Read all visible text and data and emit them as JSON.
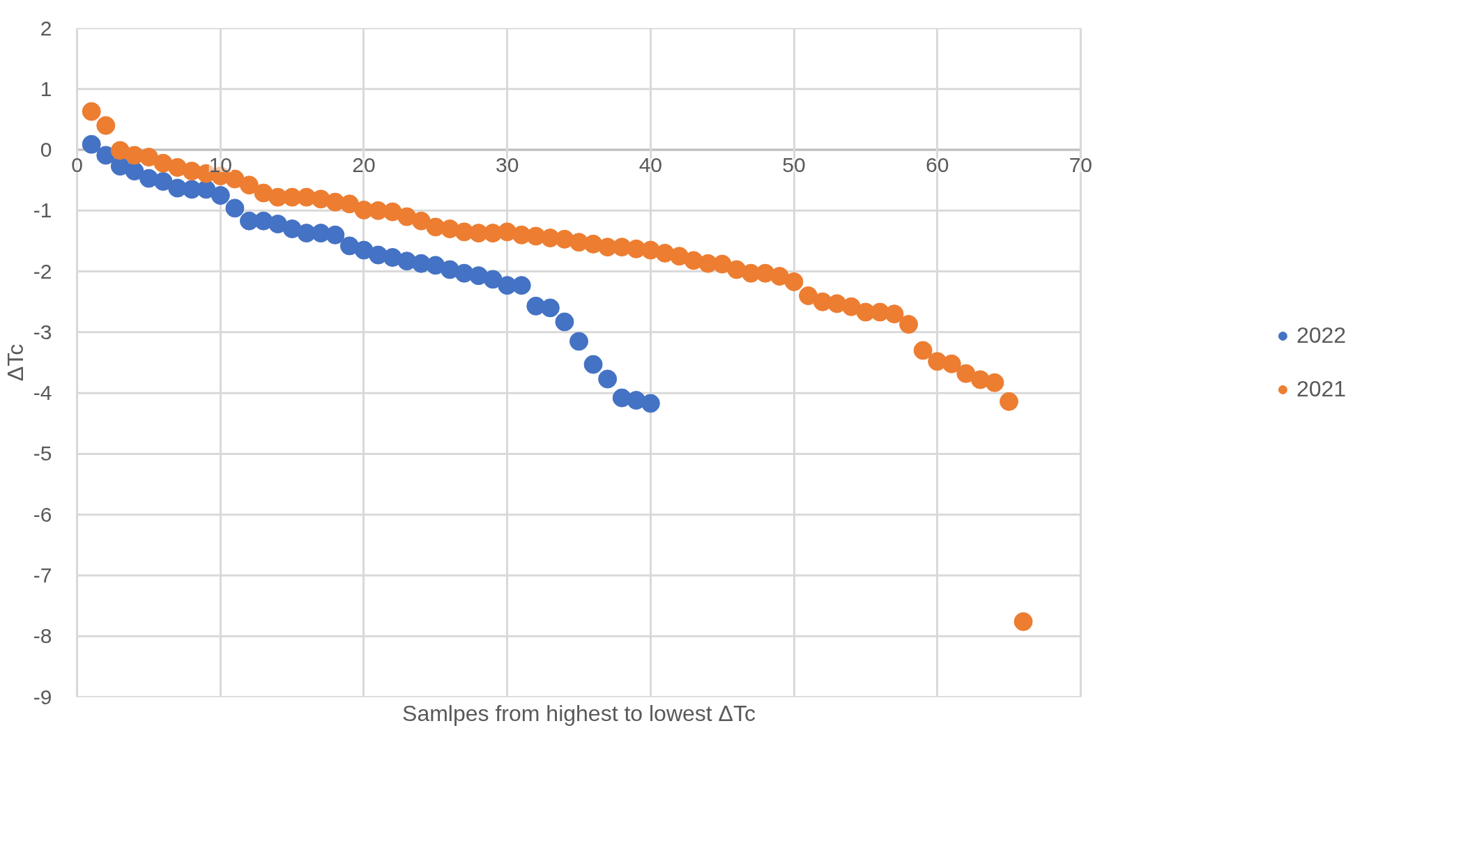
{
  "chart_data": {
    "type": "scatter",
    "xlabel": "Samlpes from highest to lowest ΔTc",
    "ylabel": "ΔTc",
    "xlim": [
      0,
      70
    ],
    "xticks": [
      0,
      10,
      20,
      30,
      40,
      50,
      60,
      70
    ],
    "ylim": [
      -9,
      2
    ],
    "yticks": [
      -9,
      -8,
      -7,
      -6,
      -5,
      -4,
      -3,
      -2,
      -1,
      0,
      1,
      2
    ],
    "grid": true,
    "legend": "right",
    "marker": "circle",
    "series": [
      {
        "name": "2022",
        "color": "#4472c4",
        "x": [
          1,
          2,
          3,
          4,
          5,
          6,
          7,
          8,
          9,
          10,
          11,
          12,
          13,
          14,
          15,
          16,
          17,
          18,
          19,
          20,
          21,
          22,
          23,
          24,
          25,
          26,
          27,
          28,
          29,
          30,
          31,
          32,
          33,
          34,
          35,
          36,
          37,
          38,
          39,
          40
        ],
        "values": [
          0.09,
          -0.09,
          -0.27,
          -0.35,
          -0.47,
          -0.52,
          -0.63,
          -0.65,
          -0.65,
          -0.75,
          -0.96,
          -1.17,
          -1.17,
          -1.22,
          -1.3,
          -1.37,
          -1.37,
          -1.4,
          -1.58,
          -1.65,
          -1.73,
          -1.77,
          -1.83,
          -1.87,
          -1.9,
          -1.97,
          -2.03,
          -2.07,
          -2.13,
          -2.23,
          -2.23,
          -2.57,
          -2.6,
          -2.83,
          -3.15,
          -3.53,
          -3.77,
          -4.08,
          -4.12,
          -4.17
        ]
      },
      {
        "name": "2021",
        "color": "#ed7d31",
        "x": [
          1,
          2,
          3,
          4,
          5,
          6,
          7,
          8,
          9,
          10,
          11,
          12,
          13,
          14,
          15,
          16,
          17,
          18,
          19,
          20,
          21,
          22,
          23,
          24,
          25,
          26,
          27,
          28,
          29,
          30,
          31,
          32,
          33,
          34,
          35,
          36,
          37,
          38,
          39,
          40,
          41,
          42,
          43,
          44,
          45,
          46,
          47,
          48,
          49,
          50,
          51,
          52,
          53,
          54,
          55,
          56,
          57,
          58,
          59,
          60,
          61,
          62,
          63,
          64,
          65,
          66
        ],
        "values": [
          0.63,
          0.4,
          -0.01,
          -0.09,
          -0.12,
          -0.22,
          -0.29,
          -0.35,
          -0.39,
          -0.43,
          -0.48,
          -0.58,
          -0.71,
          -0.78,
          -0.78,
          -0.78,
          -0.81,
          -0.86,
          -0.89,
          -0.99,
          -1.0,
          -1.02,
          -1.1,
          -1.17,
          -1.27,
          -1.3,
          -1.35,
          -1.37,
          -1.37,
          -1.35,
          -1.4,
          -1.42,
          -1.45,
          -1.47,
          -1.52,
          -1.55,
          -1.6,
          -1.6,
          -1.63,
          -1.65,
          -1.7,
          -1.75,
          -1.82,
          -1.87,
          -1.88,
          -1.97,
          -2.03,
          -2.03,
          -2.08,
          -2.17,
          -2.4,
          -2.5,
          -2.53,
          -2.58,
          -2.67,
          -2.67,
          -2.7,
          -2.87,
          -3.3,
          -3.48,
          -3.52,
          -3.68,
          -3.78,
          -3.83,
          -4.14,
          -7.76
        ]
      }
    ]
  }
}
